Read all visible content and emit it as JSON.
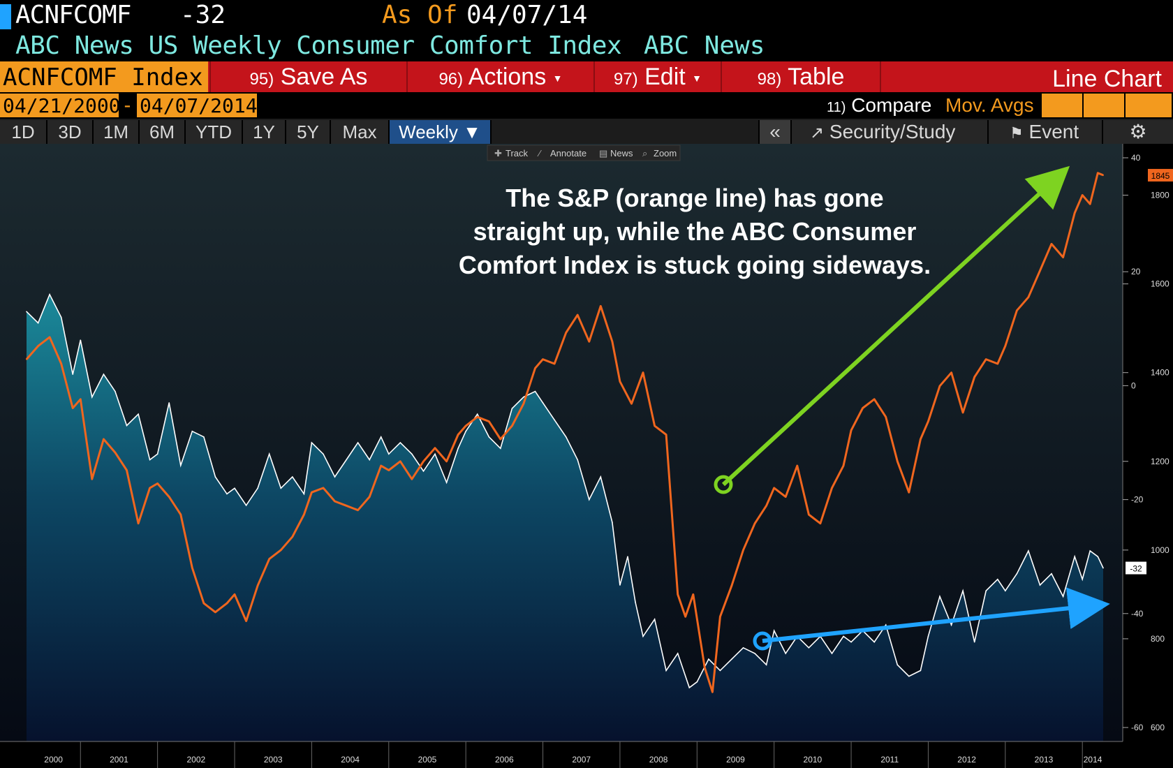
{
  "header": {
    "ticker": "ACNFCOMF",
    "last_value": "-32",
    "as_of_label": "As Of",
    "as_of_date": "04/07/14",
    "name": "ABC News US Weekly Consumer Comfort Index",
    "source": "ABC News"
  },
  "menubar": {
    "security": "ACNFCOMF Index",
    "save_as_num": "95)",
    "save_as": "Save As",
    "actions_num": "96)",
    "actions": "Actions",
    "edit_num": "97)",
    "edit": "Edit",
    "table_num": "98)",
    "table": "Table",
    "chart_type": "Line Chart"
  },
  "daterow": {
    "start": "04/21/2000",
    "dash": "-",
    "end": "04/07/2014",
    "compare_num": "11)",
    "compare": "Compare",
    "mov_avgs": "Mov. Avgs"
  },
  "timebar": {
    "ranges": [
      "1D",
      "3D",
      "1M",
      "6M",
      "YTD",
      "1Y",
      "5Y",
      "Max"
    ],
    "frequency": "Weekly ▼",
    "collapse": "«",
    "security_study": "Security/Study",
    "event": "Event"
  },
  "chart_toolbar": {
    "track": "Track",
    "annotate": "Annotate",
    "news": "News",
    "zoom": "Zoom"
  },
  "colors": {
    "accent_orange": "#f39a1e",
    "menu_red": "#c4141b",
    "index_line": "#ffffff",
    "sp500_line": "#f0661e",
    "green_arrow": "#7ed321",
    "blue_arrow": "#1fa3ff"
  },
  "chart_data": {
    "type": "line",
    "annotation": "The S&P (orange line) has gone straight up, while the ABC Consumer Comfort Index is stuck going sideways.",
    "x_tick_labels": [
      "2000",
      "2001",
      "2002",
      "2003",
      "2004",
      "2005",
      "2006",
      "2007",
      "2008",
      "2009",
      "2010",
      "2011",
      "2012",
      "2013",
      "2014"
    ],
    "x_range": [
      2000.3,
      2014.27
    ],
    "left_axis": {
      "ticks": [
        40,
        20,
        0,
        -20,
        -40,
        -60
      ],
      "tick_labels": [
        "40",
        "20",
        "0",
        "-20",
        "-40",
        "-60"
      ],
      "range": [
        -60,
        40
      ]
    },
    "right_axis": {
      "ticks": [
        1800,
        1600,
        1400,
        1200,
        1000,
        800,
        600
      ],
      "tick_labels": [
        "1800",
        "1600",
        "1400",
        "1200",
        "1000",
        "800",
        "600"
      ],
      "range": [
        600,
        1900
      ]
    },
    "last_value_labels": {
      "sp500": "1845",
      "index": "-32"
    },
    "series": [
      {
        "axis": "left",
        "values": [
          [
            2000.3,
            13
          ],
          [
            2000.45,
            11
          ],
          [
            2000.6,
            16
          ],
          [
            2000.75,
            12
          ],
          [
            2000.9,
            2
          ],
          [
            2001.0,
            8
          ],
          [
            2001.15,
            -2
          ],
          [
            2001.3,
            2
          ],
          [
            2001.45,
            -1
          ],
          [
            2001.6,
            -7
          ],
          [
            2001.75,
            -5
          ],
          [
            2001.9,
            -13
          ],
          [
            2002.0,
            -12
          ],
          [
            2002.15,
            -3
          ],
          [
            2002.3,
            -14
          ],
          [
            2002.45,
            -8
          ],
          [
            2002.6,
            -9
          ],
          [
            2002.75,
            -16
          ],
          [
            2002.9,
            -19
          ],
          [
            2003.0,
            -18
          ],
          [
            2003.15,
            -21
          ],
          [
            2003.3,
            -18
          ],
          [
            2003.45,
            -12
          ],
          [
            2003.6,
            -18
          ],
          [
            2003.75,
            -16
          ],
          [
            2003.9,
            -19
          ],
          [
            2004.0,
            -10
          ],
          [
            2004.15,
            -12
          ],
          [
            2004.3,
            -16
          ],
          [
            2004.45,
            -13
          ],
          [
            2004.6,
            -10
          ],
          [
            2004.75,
            -13
          ],
          [
            2004.9,
            -9
          ],
          [
            2005.0,
            -12
          ],
          [
            2005.15,
            -10
          ],
          [
            2005.3,
            -12
          ],
          [
            2005.45,
            -15
          ],
          [
            2005.6,
            -12
          ],
          [
            2005.75,
            -17
          ],
          [
            2005.9,
            -11
          ],
          [
            2006.0,
            -8
          ],
          [
            2006.15,
            -5
          ],
          [
            2006.3,
            -9
          ],
          [
            2006.45,
            -11
          ],
          [
            2006.6,
            -4
          ],
          [
            2006.75,
            -2
          ],
          [
            2006.9,
            -1
          ],
          [
            2007.0,
            -3
          ],
          [
            2007.15,
            -6
          ],
          [
            2007.3,
            -9
          ],
          [
            2007.45,
            -13
          ],
          [
            2007.6,
            -20
          ],
          [
            2007.75,
            -16
          ],
          [
            2007.9,
            -24
          ],
          [
            2008.0,
            -35
          ],
          [
            2008.1,
            -30
          ],
          [
            2008.2,
            -38
          ],
          [
            2008.3,
            -44
          ],
          [
            2008.45,
            -41
          ],
          [
            2008.6,
            -50
          ],
          [
            2008.75,
            -47
          ],
          [
            2008.9,
            -53
          ],
          [
            2009.0,
            -52
          ],
          [
            2009.15,
            -48
          ],
          [
            2009.3,
            -50
          ],
          [
            2009.45,
            -48
          ],
          [
            2009.6,
            -46
          ],
          [
            2009.75,
            -47
          ],
          [
            2009.9,
            -49
          ],
          [
            2010.0,
            -43
          ],
          [
            2010.15,
            -47
          ],
          [
            2010.3,
            -44
          ],
          [
            2010.45,
            -46
          ],
          [
            2010.6,
            -44
          ],
          [
            2010.75,
            -47
          ],
          [
            2010.9,
            -44
          ],
          [
            2011.0,
            -45
          ],
          [
            2011.15,
            -43
          ],
          [
            2011.3,
            -45
          ],
          [
            2011.45,
            -42
          ],
          [
            2011.6,
            -49
          ],
          [
            2011.75,
            -51
          ],
          [
            2011.9,
            -50
          ],
          [
            2012.0,
            -44
          ],
          [
            2012.15,
            -37
          ],
          [
            2012.3,
            -42
          ],
          [
            2012.45,
            -36
          ],
          [
            2012.6,
            -45
          ],
          [
            2012.75,
            -36
          ],
          [
            2012.9,
            -34
          ],
          [
            2013.0,
            -36
          ],
          [
            2013.15,
            -33
          ],
          [
            2013.3,
            -29
          ],
          [
            2013.45,
            -35
          ],
          [
            2013.6,
            -33
          ],
          [
            2013.75,
            -37
          ],
          [
            2013.9,
            -30
          ],
          [
            2014.0,
            -34
          ],
          [
            2014.1,
            -29
          ],
          [
            2014.2,
            -30
          ],
          [
            2014.27,
            -32
          ]
        ]
      },
      {
        "axis": "right",
        "values": [
          [
            2000.3,
            1430
          ],
          [
            2000.45,
            1460
          ],
          [
            2000.6,
            1480
          ],
          [
            2000.75,
            1420
          ],
          [
            2000.9,
            1320
          ],
          [
            2001.0,
            1340
          ],
          [
            2001.15,
            1160
          ],
          [
            2001.3,
            1250
          ],
          [
            2001.45,
            1220
          ],
          [
            2001.6,
            1180
          ],
          [
            2001.75,
            1060
          ],
          [
            2001.9,
            1140
          ],
          [
            2002.0,
            1150
          ],
          [
            2002.15,
            1120
          ],
          [
            2002.3,
            1080
          ],
          [
            2002.45,
            960
          ],
          [
            2002.6,
            880
          ],
          [
            2002.75,
            860
          ],
          [
            2002.9,
            880
          ],
          [
            2003.0,
            900
          ],
          [
            2003.15,
            840
          ],
          [
            2003.3,
            920
          ],
          [
            2003.45,
            980
          ],
          [
            2003.6,
            1000
          ],
          [
            2003.75,
            1030
          ],
          [
            2003.9,
            1080
          ],
          [
            2004.0,
            1130
          ],
          [
            2004.15,
            1140
          ],
          [
            2004.3,
            1110
          ],
          [
            2004.45,
            1100
          ],
          [
            2004.6,
            1090
          ],
          [
            2004.75,
            1120
          ],
          [
            2004.9,
            1190
          ],
          [
            2005.0,
            1180
          ],
          [
            2005.15,
            1200
          ],
          [
            2005.3,
            1160
          ],
          [
            2005.45,
            1200
          ],
          [
            2005.6,
            1230
          ],
          [
            2005.75,
            1200
          ],
          [
            2005.9,
            1260
          ],
          [
            2006.0,
            1280
          ],
          [
            2006.15,
            1300
          ],
          [
            2006.3,
            1290
          ],
          [
            2006.45,
            1250
          ],
          [
            2006.6,
            1280
          ],
          [
            2006.75,
            1330
          ],
          [
            2006.9,
            1410
          ],
          [
            2007.0,
            1430
          ],
          [
            2007.15,
            1420
          ],
          [
            2007.3,
            1490
          ],
          [
            2007.45,
            1530
          ],
          [
            2007.6,
            1470
          ],
          [
            2007.75,
            1550
          ],
          [
            2007.9,
            1470
          ],
          [
            2008.0,
            1380
          ],
          [
            2008.15,
            1330
          ],
          [
            2008.3,
            1400
          ],
          [
            2008.45,
            1280
          ],
          [
            2008.6,
            1260
          ],
          [
            2008.75,
            900
          ],
          [
            2008.85,
            850
          ],
          [
            2008.95,
            900
          ],
          [
            2009.1,
            735
          ],
          [
            2009.2,
            680
          ],
          [
            2009.3,
            850
          ],
          [
            2009.45,
            920
          ],
          [
            2009.6,
            1000
          ],
          [
            2009.75,
            1060
          ],
          [
            2009.9,
            1100
          ],
          [
            2010.0,
            1140
          ],
          [
            2010.15,
            1120
          ],
          [
            2010.3,
            1190
          ],
          [
            2010.45,
            1080
          ],
          [
            2010.6,
            1060
          ],
          [
            2010.75,
            1140
          ],
          [
            2010.9,
            1190
          ],
          [
            2011.0,
            1270
          ],
          [
            2011.15,
            1320
          ],
          [
            2011.3,
            1340
          ],
          [
            2011.45,
            1300
          ],
          [
            2011.6,
            1200
          ],
          [
            2011.75,
            1130
          ],
          [
            2011.9,
            1250
          ],
          [
            2012.0,
            1290
          ],
          [
            2012.15,
            1370
          ],
          [
            2012.3,
            1400
          ],
          [
            2012.45,
            1310
          ],
          [
            2012.6,
            1390
          ],
          [
            2012.75,
            1430
          ],
          [
            2012.9,
            1420
          ],
          [
            2013.0,
            1460
          ],
          [
            2013.15,
            1540
          ],
          [
            2013.3,
            1570
          ],
          [
            2013.45,
            1630
          ],
          [
            2013.6,
            1690
          ],
          [
            2013.75,
            1660
          ],
          [
            2013.9,
            1760
          ],
          [
            2014.0,
            1800
          ],
          [
            2014.1,
            1780
          ],
          [
            2014.2,
            1850
          ],
          [
            2014.27,
            1845
          ]
        ]
      }
    ]
  }
}
